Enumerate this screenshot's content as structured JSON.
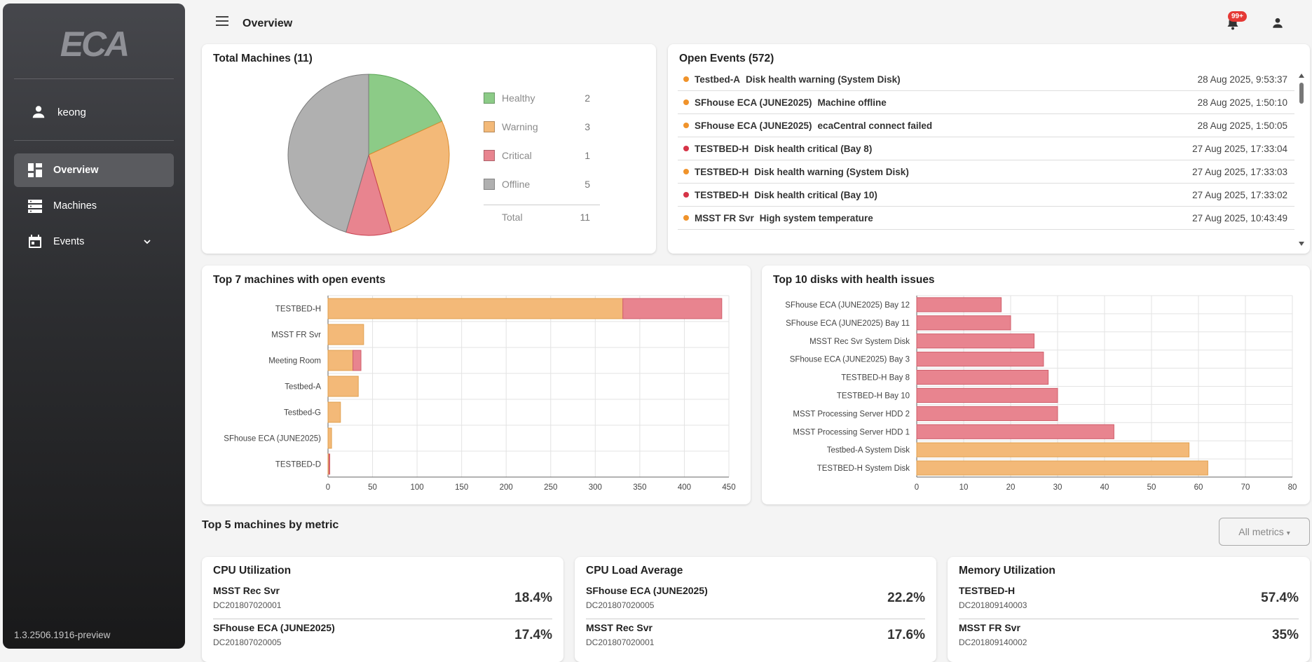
{
  "app": {
    "logo_text": "ECA",
    "version": "1.3.2506.1916-preview"
  },
  "user": {
    "name": "keong"
  },
  "nav": [
    {
      "label": "Overview",
      "icon": "dashboard-icon",
      "active": true
    },
    {
      "label": "Machines",
      "icon": "server-icon",
      "active": false
    },
    {
      "label": "Events",
      "icon": "calendar-icon",
      "active": false
    }
  ],
  "topbar": {
    "title": "Overview",
    "notification_badge": "99+"
  },
  "total_machines": {
    "title": "Total Machines (11)",
    "legend": [
      {
        "label": "Healthy",
        "value": "2",
        "color": "#8ccb87"
      },
      {
        "label": "Warning",
        "value": "3",
        "color": "#f3b978"
      },
      {
        "label": "Critical",
        "value": "1",
        "color": "#e8848f"
      },
      {
        "label": "Offline",
        "value": "5",
        "color": "#b0b0b0"
      }
    ],
    "total_label": "Total",
    "total_value": "11"
  },
  "open_events": {
    "title": "Open Events (572)",
    "items": [
      {
        "machine": "Testbed-A",
        "message": "Disk health warning (System Disk)",
        "time": "28 Aug 2025, 9:53:37",
        "severity": "warning"
      },
      {
        "machine": "SFhouse ECA (JUNE2025)",
        "message": "Machine offline",
        "time": "28 Aug 2025, 1:50:10",
        "severity": "warning"
      },
      {
        "machine": "SFhouse ECA (JUNE2025)",
        "message": "ecaCentral connect failed",
        "time": "28 Aug 2025, 1:50:05",
        "severity": "warning"
      },
      {
        "machine": "TESTBED-H",
        "message": "Disk health critical (Bay 8)",
        "time": "27 Aug 2025, 17:33:04",
        "severity": "critical"
      },
      {
        "machine": "TESTBED-H",
        "message": "Disk health warning (System Disk)",
        "time": "27 Aug 2025, 17:33:03",
        "severity": "warning"
      },
      {
        "machine": "TESTBED-H",
        "message": "Disk health critical (Bay 10)",
        "time": "27 Aug 2025, 17:33:02",
        "severity": "critical"
      },
      {
        "machine": "MSST FR Svr",
        "message": "High system temperature",
        "time": "27 Aug 2025, 10:43:49",
        "severity": "warning"
      }
    ],
    "severity_colors": {
      "warning": "#f0932b",
      "critical": "#d63447"
    }
  },
  "chart_data": [
    {
      "type": "pie",
      "title": "Total Machines (11)",
      "categories": [
        "Healthy",
        "Warning",
        "Critical",
        "Offline"
      ],
      "values": [
        2,
        3,
        1,
        5
      ],
      "colors": [
        "#8ccb87",
        "#f3b978",
        "#e8848f",
        "#b0b0b0"
      ]
    },
    {
      "type": "bar",
      "orientation": "horizontal",
      "stacked": true,
      "title": "Top 7 machines with open events",
      "categories": [
        "TESTBED-H",
        "MSST FR Svr",
        "Meeting Room",
        "Testbed-A",
        "Testbed-G",
        "SFhouse ECA (JUNE2025)",
        "TESTBED-D"
      ],
      "series": [
        {
          "values": [
            331,
            40,
            28,
            34,
            14,
            4,
            1
          ],
          "color": "#f3b978"
        },
        {
          "values": [
            111,
            0,
            9,
            0,
            0,
            0,
            1
          ],
          "color": "#e8848f"
        }
      ],
      "xlim": [
        0,
        450
      ],
      "xticks": [
        0,
        50,
        100,
        150,
        200,
        250,
        300,
        350,
        400,
        450
      ],
      "grid": true
    },
    {
      "type": "bar",
      "orientation": "horizontal",
      "title": "Top 10 disks with health issues",
      "categories": [
        "SFhouse ECA (JUNE2025) Bay 12",
        "SFhouse ECA (JUNE2025) Bay 11",
        "MSST Rec Svr System Disk",
        "SFhouse ECA (JUNE2025) Bay 3",
        "TESTBED-H Bay 8",
        "TESTBED-H Bay 10",
        "MSST Processing Server HDD 2",
        "MSST Processing Server HDD 1",
        "Testbed-A System Disk",
        "TESTBED-H System Disk"
      ],
      "values": [
        18,
        20,
        25,
        27,
        28,
        30,
        30,
        42,
        58,
        62
      ],
      "colors": [
        "#e8848f",
        "#e8848f",
        "#e8848f",
        "#e8848f",
        "#e8848f",
        "#e8848f",
        "#e8848f",
        "#e8848f",
        "#f3b978",
        "#f3b978"
      ],
      "xlim": [
        0,
        80
      ],
      "xticks": [
        0,
        10,
        20,
        30,
        40,
        50,
        60,
        70,
        80
      ],
      "grid": true
    }
  ],
  "metrics_section": {
    "title": "Top 5 machines by metric",
    "dropdown_label": "All metrics",
    "dropdown_caret": "▾"
  },
  "metric_cards": [
    {
      "title": "CPU Utilization",
      "rows": [
        {
          "name": "MSST Rec Svr",
          "id": "DC201807020001",
          "value": "18.4%"
        },
        {
          "name": "SFhouse ECA (JUNE2025)",
          "id": "DC201807020005",
          "value": "17.4%"
        }
      ]
    },
    {
      "title": "CPU Load Average",
      "rows": [
        {
          "name": "SFhouse ECA (JUNE2025)",
          "id": "DC201807020005",
          "value": "22.2%"
        },
        {
          "name": "MSST Rec Svr",
          "id": "DC201807020001",
          "value": "17.6%"
        }
      ]
    },
    {
      "title": "Memory Utilization",
      "rows": [
        {
          "name": "TESTBED-H",
          "id": "DC201809140003",
          "value": "57.4%"
        },
        {
          "name": "MSST FR Svr",
          "id": "DC201809140002",
          "value": "35%"
        }
      ]
    }
  ]
}
